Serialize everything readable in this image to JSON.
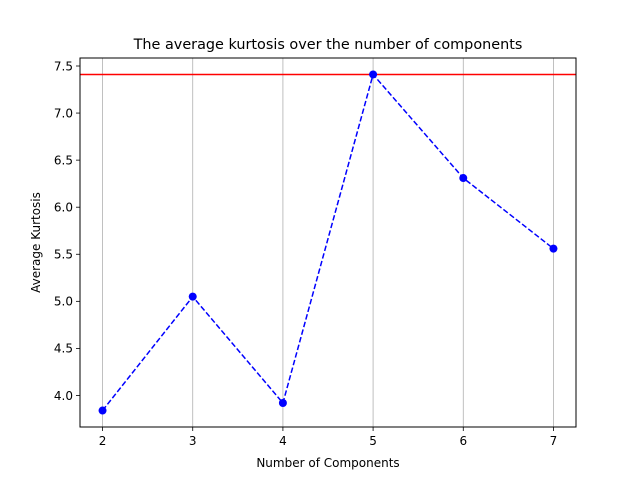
{
  "chart_data": {
    "type": "line",
    "title": "The average kurtosis over the number of components",
    "xlabel": "Number of Components",
    "ylabel": "Average Kurtosis",
    "x": [
      2,
      3,
      4,
      5,
      6,
      7
    ],
    "series": [
      {
        "values": [
          3.84,
          5.05,
          3.92,
          7.41,
          6.31,
          5.56
        ],
        "color": "#0000ff",
        "line_style": "dashed",
        "marker": "circle"
      }
    ],
    "reference_line": {
      "y": 7.41,
      "color": "#ff0000",
      "orientation": "horizontal"
    },
    "xlim": [
      1.75,
      7.25
    ],
    "ylim": [
      3.665,
      7.585
    ],
    "xticks": [
      "2",
      "3",
      "4",
      "5",
      "6",
      "7"
    ],
    "yticks": [
      "4.0",
      "4.5",
      "5.0",
      "5.5",
      "6.0",
      "6.5",
      "7.0",
      "7.5"
    ],
    "grid": "x-only",
    "legend": "none"
  }
}
